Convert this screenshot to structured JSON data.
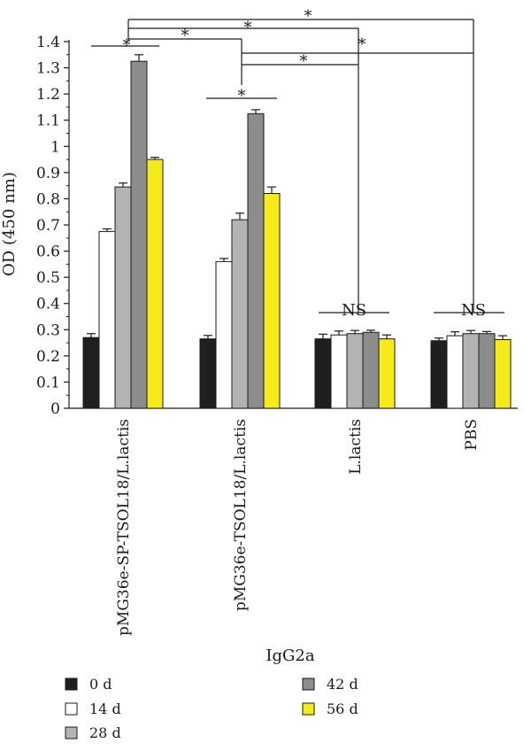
{
  "chart_data": {
    "type": "bar",
    "title": "",
    "xlabel": "IgG2a",
    "ylabel": "OD (450 nm)",
    "ylim": [
      0,
      1.4
    ],
    "yticks": [
      "0",
      "0.1",
      "0.2",
      "0.3",
      "0.4",
      "0.5",
      "0.6",
      "0.7",
      "0.8",
      "0.9",
      "1",
      "1.1",
      "1.2",
      "1.3",
      "1.4"
    ],
    "grid": false,
    "legend_position": "bottom",
    "categories": [
      "pMG36e-SP-TSOL18/L.lactis",
      "pMG36e-TSOL18/L.lactis",
      "L.lactis",
      "PBS"
    ],
    "series": [
      {
        "name": "0 d",
        "color": "#1f1f1f",
        "values": [
          0.27,
          0.265,
          0.265,
          0.258
        ],
        "errors": [
          0.015,
          0.013,
          0.018,
          0.01
        ]
      },
      {
        "name": "14 d",
        "color": "#ffffff",
        "values": [
          0.675,
          0.56,
          0.28,
          0.277
        ],
        "errors": [
          0.01,
          0.012,
          0.015,
          0.015
        ]
      },
      {
        "name": "28 d",
        "color": "#b3b3b3",
        "values": [
          0.845,
          0.72,
          0.285,
          0.285
        ],
        "errors": [
          0.015,
          0.025,
          0.012,
          0.012
        ]
      },
      {
        "name": "42 d",
        "color": "#8c8c8c",
        "values": [
          1.325,
          1.125,
          0.29,
          0.285
        ],
        "errors": [
          0.025,
          0.015,
          0.008,
          0.008
        ]
      },
      {
        "name": "56 d",
        "color": "#f5eb1a",
        "values": [
          0.95,
          0.82,
          0.265,
          0.262
        ],
        "errors": [
          0.008,
          0.025,
          0.015,
          0.015
        ]
      }
    ],
    "annotations": [
      {
        "type": "significance",
        "label": "*",
        "between": [
          "pMG36e-SP-TSOL18/L.lactis",
          "PBS"
        ]
      },
      {
        "type": "significance",
        "label": "*",
        "between": [
          "pMG36e-SP-TSOL18/L.lactis",
          "L.lactis"
        ]
      },
      {
        "type": "significance",
        "label": "*",
        "between": [
          "pMG36e-SP-TSOL18/L.lactis",
          "pMG36e-TSOL18/L.lactis"
        ]
      },
      {
        "type": "significance",
        "label": "*",
        "between": [
          "pMG36e-TSOL18/L.lactis",
          "PBS"
        ]
      },
      {
        "type": "significance",
        "label": "*",
        "between": [
          "pMG36e-TSOL18/L.lactis",
          "L.lactis"
        ]
      },
      {
        "type": "significance",
        "label": "*",
        "within": "pMG36e-SP-TSOL18/L.lactis"
      },
      {
        "type": "significance",
        "label": "*",
        "within": "pMG36e-TSOL18/L.lactis"
      },
      {
        "type": "significance",
        "label": "NS",
        "within": "L.lactis"
      },
      {
        "type": "significance",
        "label": "NS",
        "within": "PBS"
      }
    ]
  }
}
